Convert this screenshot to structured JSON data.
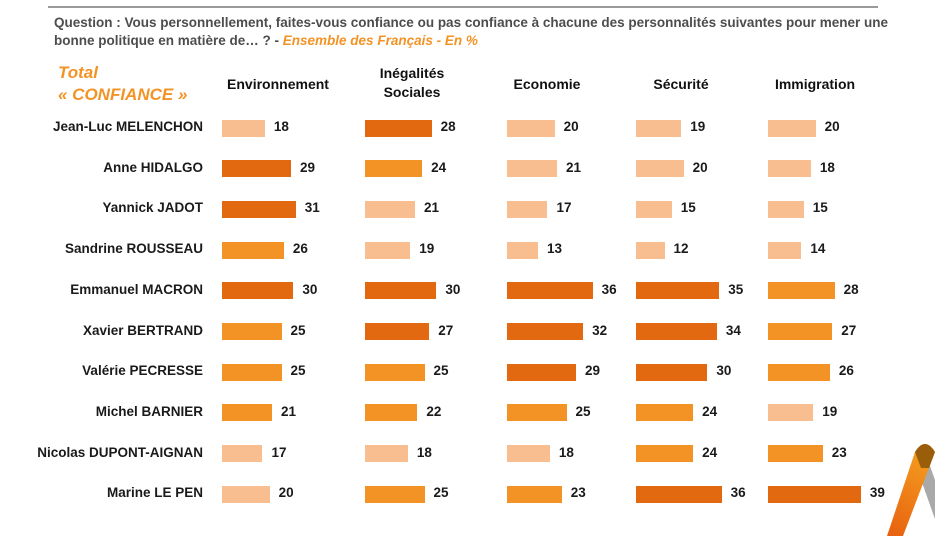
{
  "header": {
    "question_text": "Question : Vous personnellement, faites-vous confiance ou pas confiance à chacune des personnalités suivantes pour mener une bonne politique en matière de… ? - ",
    "question_sub": "Ensemble des Français - En %",
    "total_line1": "Total",
    "total_line2": "« CONFIANCE »"
  },
  "colors": {
    "low": "#F8BE8F",
    "mid": "#F39325",
    "high": "#E2690F"
  },
  "chart_data": {
    "type": "bar",
    "title": "Total « CONFIANCE »",
    "unit": "%",
    "xlabel": "",
    "ylabel": "",
    "xlim": [
      0,
      40
    ],
    "legend": "none",
    "grid": false,
    "categories": [
      "Jean-Luc MELENCHON",
      "Anne HIDALGO",
      "Yannick JADOT",
      "Sandrine ROUSSEAU",
      "Emmanuel MACRON",
      "Xavier BERTRAND",
      "Valérie PECRESSE",
      "Michel BARNIER",
      "Nicolas DUPONT-AIGNAN",
      "Marine LE PEN"
    ],
    "series": [
      {
        "name": "Environnement",
        "values": [
          18,
          29,
          31,
          26,
          30,
          25,
          25,
          21,
          17,
          20
        ],
        "tiers": [
          "low",
          "high",
          "high",
          "mid",
          "high",
          "mid",
          "mid",
          "mid",
          "low",
          "low"
        ]
      },
      {
        "name": "Inégalités Sociales",
        "values": [
          28,
          24,
          21,
          19,
          30,
          27,
          25,
          22,
          18,
          25
        ],
        "tiers": [
          "high",
          "mid",
          "low",
          "low",
          "high",
          "high",
          "mid",
          "mid",
          "low",
          "mid"
        ]
      },
      {
        "name": "Economie",
        "values": [
          20,
          21,
          17,
          13,
          36,
          32,
          29,
          25,
          18,
          23
        ],
        "tiers": [
          "low",
          "low",
          "low",
          "low",
          "high",
          "high",
          "high",
          "mid",
          "low",
          "mid"
        ]
      },
      {
        "name": "Sécurité",
        "values": [
          19,
          20,
          15,
          12,
          35,
          34,
          30,
          24,
          24,
          36
        ],
        "tiers": [
          "low",
          "low",
          "low",
          "low",
          "high",
          "high",
          "high",
          "mid",
          "mid",
          "high"
        ]
      },
      {
        "name": "Immigration",
        "values": [
          20,
          18,
          15,
          14,
          28,
          27,
          26,
          19,
          23,
          39
        ],
        "tiers": [
          "low",
          "low",
          "low",
          "low",
          "mid",
          "mid",
          "mid",
          "low",
          "mid",
          "high"
        ]
      }
    ],
    "column_headers": [
      [
        "Environnement"
      ],
      [
        "Inégalités",
        "Sociales"
      ],
      [
        "Economie"
      ],
      [
        "Sécurité"
      ],
      [
        "Immigration"
      ]
    ]
  }
}
